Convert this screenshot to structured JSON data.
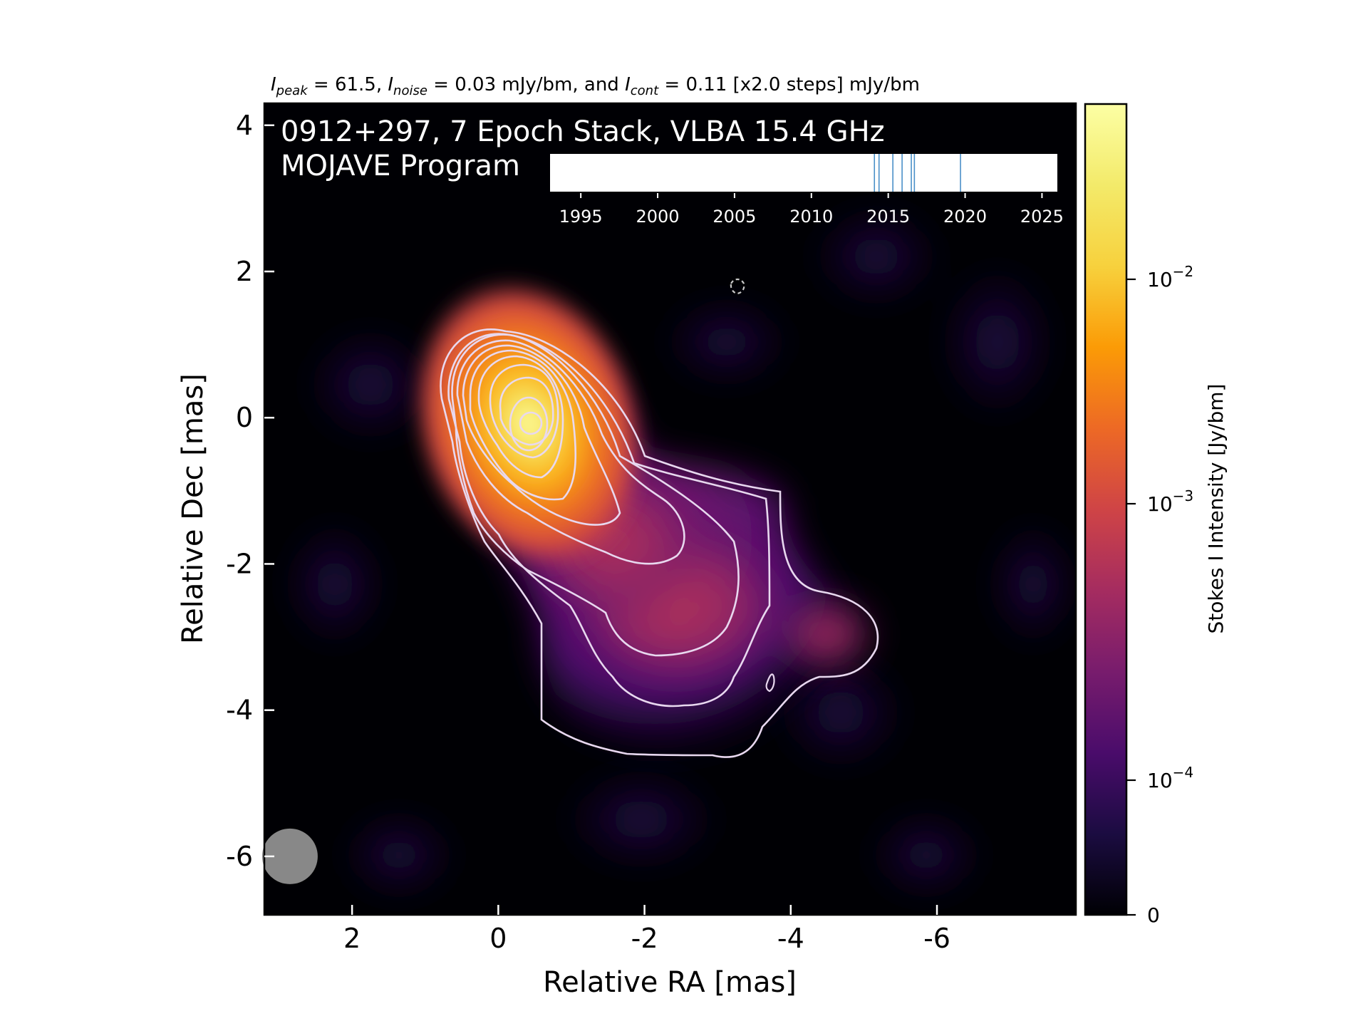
{
  "chart_data": {
    "type": "heatmap",
    "header": {
      "ipeak_sym": "I",
      "ipeak_sub": "peak",
      "ipeak_text": " = 61.5, ",
      "inoise_sym": "I",
      "inoise_sub": "noise",
      "inoise_text": " = 0.03 mJy/bm, and ",
      "icont_sym": "I",
      "icont_sub": "cont",
      "icont_text": " = 0.11 [x2.0 steps] mJy/bm"
    },
    "title_line1": "0912+297, 7 Epoch Stack, VLBA 15.4 GHz",
    "title_line2": "MOJAVE Program",
    "xlabel": "Relative RA [mas]",
    "ylabel": "Relative Dec [mas]",
    "xlim": [
      3.2,
      -7.9
    ],
    "ylim": [
      -6.8,
      4.3
    ],
    "xticks": [
      2,
      0,
      -2,
      -4,
      -6
    ],
    "yticks": [
      4,
      2,
      0,
      -2,
      -4,
      -6
    ],
    "xtick_labels": [
      "2",
      "0",
      "-2",
      "-4",
      "-6"
    ],
    "ytick_labels": [
      "4",
      "2",
      "0",
      "-2",
      "-4",
      "-6"
    ],
    "colorbar": {
      "label": "Stokes I Intensity [Jy/bm]",
      "ticks": [
        {
          "base": "10",
          "exp": "−2",
          "value": 0.01
        },
        {
          "base": "10",
          "exp": "−3",
          "value": 0.001
        },
        {
          "base": "10",
          "exp": "−4",
          "value": 0.0001
        },
        {
          "base": "",
          "exp": "",
          "label": "0",
          "value": 0
        }
      ],
      "colormap": "inferno"
    },
    "peak_position": [
      0,
      -0.1
    ],
    "contour_color": "#e8d8ef",
    "beam": {
      "center": [
        2.85,
        -6.0
      ],
      "color": "#888888"
    },
    "epoch_timeline": {
      "xlim": [
        1993,
        2026
      ],
      "ticks": [
        1995,
        2000,
        2005,
        2010,
        2015,
        2020,
        2025
      ],
      "tick_labels": [
        "1995",
        "2000",
        "2005",
        "2010",
        "2015",
        "2020",
        "2025"
      ],
      "epochs": [
        2014.1,
        2014.4,
        2015.3,
        2015.9,
        2016.5,
        2016.7,
        2019.7
      ],
      "epoch_color": "#4a90c8"
    }
  }
}
